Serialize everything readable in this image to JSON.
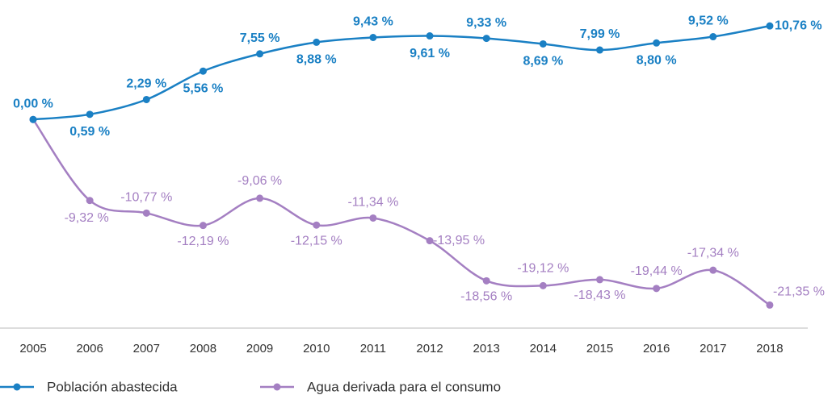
{
  "chart_data": {
    "type": "line",
    "categories": [
      "2005",
      "2006",
      "2007",
      "2008",
      "2009",
      "2010",
      "2011",
      "2012",
      "2013",
      "2014",
      "2015",
      "2016",
      "2017",
      "2018"
    ],
    "series": [
      {
        "name": "Población abastecida",
        "color": "#1a80c4",
        "values": [
          0,
          0.59,
          2.29,
          5.56,
          7.55,
          8.88,
          9.43,
          9.61,
          9.33,
          8.69,
          7.99,
          8.8,
          9.52,
          10.76
        ],
        "value_labels": [
          "0,00 %",
          "0,59 %",
          "2,29 %",
          "5,56 %",
          "7,55 %",
          "8,88 %",
          "9,43 %",
          "9,61 %",
          "9,33 %",
          "8,69 %",
          "7,99 %",
          "8,80 %",
          "9,52 %",
          "10,76 %"
        ]
      },
      {
        "name": "Agua derivada para el consumo",
        "color": "#a47fc2",
        "values": [
          0,
          -9.32,
          -10.77,
          -12.19,
          -9.06,
          -12.15,
          -11.34,
          -13.95,
          -18.56,
          -19.12,
          -18.43,
          -19.44,
          -17.34,
          -21.35
        ],
        "value_labels": [
          null,
          "-9,32 %",
          "-10,77 %",
          "-12,19 %",
          "-9,06 %",
          "-12,15 %",
          "-11,34 %",
          "-13,95 %",
          "-18,56 %",
          "-19,12 %",
          "-18,43 %",
          "-19,44 %",
          "-17,34 %",
          "-21,35 %"
        ]
      }
    ],
    "ylim": [
      -24,
      13
    ]
  }
}
